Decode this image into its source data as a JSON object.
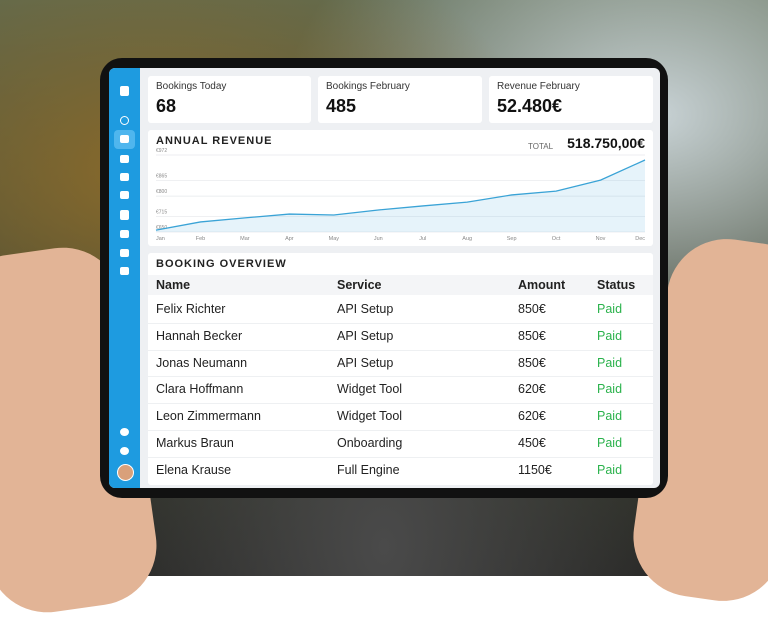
{
  "stats": [
    {
      "label": "Bookings Today",
      "value": "68"
    },
    {
      "label": "Bookings February",
      "value": "485"
    },
    {
      "label": "Revenue February",
      "value": "52.480€"
    }
  ],
  "chart_data": {
    "type": "line",
    "title": "ANNUAL REVENUE",
    "total_label": "TOTAL",
    "total": "518.750,00€",
    "categories": [
      "Jan",
      "Feb",
      "Mar",
      "Apr",
      "May",
      "Jun",
      "Jul",
      "Aug",
      "Sep",
      "Oct",
      "Nov",
      "Dec"
    ],
    "series": [
      {
        "color": "#3aa3d6",
        "values": [
          658,
          692,
          709,
          725,
          721,
          742,
          759,
          775,
          805,
          821,
          867,
          951
        ]
      }
    ],
    "ylim": [
      650,
      972
    ],
    "yticks": [
      {
        "value": 650,
        "label": "€650"
      },
      {
        "value": 715,
        "label": "€715"
      },
      {
        "value": 800,
        "label": "€800"
      },
      {
        "value": 865,
        "label": "€865"
      },
      {
        "value": 972,
        "label": "€972"
      }
    ],
    "grid": true
  },
  "table": {
    "title": "BOOKING OVERVIEW",
    "columns": [
      "Name",
      "Service",
      "Amount",
      "Status"
    ],
    "rows": [
      [
        "Felix Richter",
        "API Setup",
        "850€",
        "Paid"
      ],
      [
        "Hannah Becker",
        "API Setup",
        "850€",
        "Paid"
      ],
      [
        "Jonas Neumann",
        "API Setup",
        "850€",
        "Paid"
      ],
      [
        "Clara Hoffmann",
        "Widget Tool",
        "620€",
        "Paid"
      ],
      [
        "Leon Zimmermann",
        "Widget Tool",
        "620€",
        "Paid"
      ],
      [
        "Markus Braun",
        "Onboarding",
        "450€",
        "Paid"
      ],
      [
        "Elena Krause",
        "Full Engine",
        "1150€",
        "Paid"
      ]
    ]
  }
}
